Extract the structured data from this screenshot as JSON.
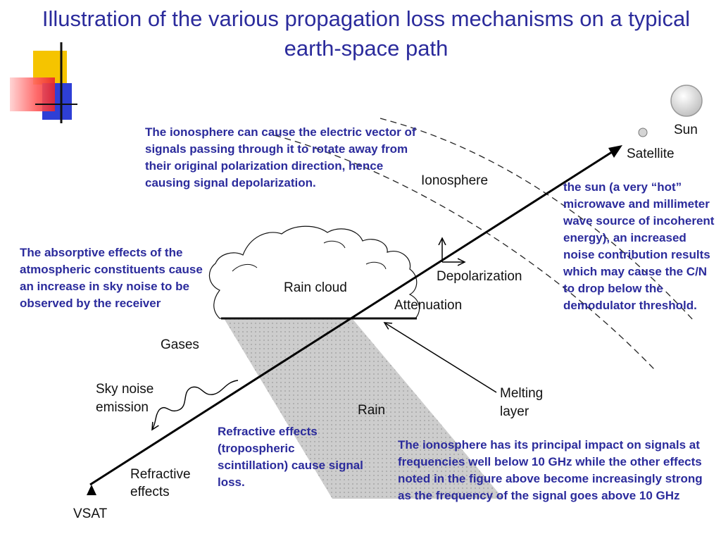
{
  "slide": {
    "title": "Illustration of the various propagation loss mechanisms on a typical earth-space path"
  },
  "colors": {
    "title": "#2b2b9c",
    "notes": "#2b2b9c",
    "deco_yellow": "#f5c400",
    "deco_blue": "#2e3fd6",
    "deco_red": "#e8242b"
  },
  "diagram": {
    "labels": {
      "sun": "Sun",
      "satellite": "Satellite",
      "ionosphere": "Ionosphere",
      "rain_cloud": "Rain cloud",
      "depolarization": "Depolarization",
      "attenuation": "Attenuation",
      "gases": "Gases",
      "sky_noise_1": "Sky noise",
      "sky_noise_2": "emission",
      "melting_1": "Melting",
      "melting_2": "layer",
      "rain": "Rain",
      "refractive_1": "Refractive",
      "refractive_2": "effects",
      "vsat": "VSAT"
    }
  },
  "notes": {
    "ionosphere_depolarization": "The ionosphere can cause the electric vector of signals passing through it to rotate away from their original polarization direction, hence causing signal depolarization.",
    "absorptive": "The absorptive effects of the atmospheric constituents cause an increase in sky noise to be observed by the receiver",
    "sun": "the sun (a very “hot” microwave and millimeter wave source of incoherent energy), an increased  noise contribution results which may cause the C/N to drop below the demodulator threshold.",
    "refractive": "Refractive effects (tropospheric scintillation) cause signal loss.",
    "ionosphere_frequency": "The ionosphere has its principal impact on signals at frequencies well below 10 GHz while the other effects noted in the figure above become increasingly strong as the frequency of the signal goes above 10 GHz"
  }
}
